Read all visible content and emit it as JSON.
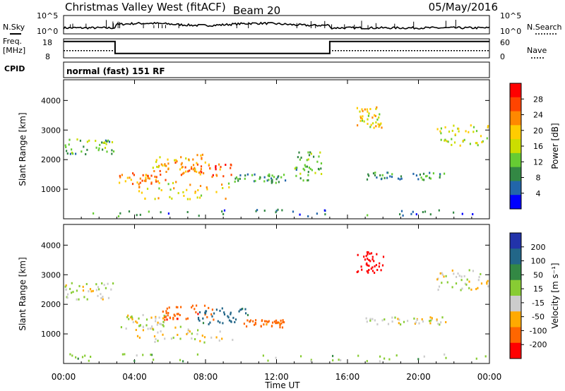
{
  "header": {
    "station": "Christmas Valley West (fitACF)",
    "beam": "Beam 20",
    "date": "05/May/2016"
  },
  "top_panels": {
    "noise": {
      "left_label": "N.Sky",
      "right_label": "N.Search",
      "left_ticks": [
        "10^5",
        "10^0"
      ],
      "right_ticks": [
        "10^5",
        "10^0"
      ]
    },
    "freq": {
      "left_label_1": "Freq.",
      "left_label_2": "[MHz]",
      "right_label": "Nave",
      "left_ticks": [
        "18",
        "8"
      ],
      "right_ticks": [
        "60",
        "0"
      ],
      "freq_series": {
        "x": [
          0,
          2.9,
          2.9,
          15.0,
          15.0,
          24
        ],
        "y": [
          16.6,
          16.6,
          10.3,
          10.3,
          16.6,
          16.6
        ],
        "ylim": [
          8,
          18
        ]
      },
      "nave_series": {
        "x": [
          0,
          2.9,
          2.9,
          15.0,
          15.0,
          24
        ],
        "y": [
          23,
          23,
          14,
          14,
          23,
          23
        ],
        "ylim": [
          0,
          60
        ]
      }
    },
    "cpid": {
      "label": "CPID",
      "value": "normal (fast) 151 RF"
    }
  },
  "chart_data": [
    {
      "type": "heatmap",
      "name": "power",
      "ylabel": "Slant Range [km]",
      "ylim": [
        0,
        4700
      ],
      "yticks": [
        1000,
        2000,
        3000,
        4000
      ],
      "xlim": [
        0,
        24
      ],
      "xticks": [
        "00:00",
        "04:00",
        "08:00",
        "12:00",
        "16:00",
        "20:00",
        "00:00"
      ],
      "colorbar": {
        "label": "Power [dB]",
        "ticks": [
          "28",
          "24",
          "20",
          "16",
          "12",
          "8",
          "4"
        ],
        "colors": [
          "#ff0000",
          "#ff4400",
          "#ff8800",
          "#ffcc00",
          "#ccdd00",
          "#66cc33",
          "#338844",
          "#2266aa",
          "#0000ff"
        ]
      },
      "regions": [
        {
          "x": [
            0.0,
            2.8
          ],
          "y": [
            2200,
            2750
          ],
          "v": 12
        },
        {
          "x": [
            3.0,
            5.8
          ],
          "y": [
            1200,
            1700
          ],
          "v": 22
        },
        {
          "x": [
            5.0,
            8.0
          ],
          "y": [
            1700,
            2200
          ],
          "v": 20
        },
        {
          "x": [
            6.5,
            9.5
          ],
          "y": [
            1450,
            1900
          ],
          "v": 24
        },
        {
          "x": [
            4.0,
            9.5
          ],
          "y": [
            700,
            1300
          ],
          "v": 18
        },
        {
          "x": [
            9.5,
            12.5
          ],
          "y": [
            1250,
            1550
          ],
          "v": 10
        },
        {
          "x": [
            13.0,
            14.5
          ],
          "y": [
            1300,
            2300
          ],
          "v": 12
        },
        {
          "x": [
            16.5,
            18.0
          ],
          "y": [
            3100,
            3800
          ],
          "v": 18
        },
        {
          "x": [
            17.0,
            21.5
          ],
          "y": [
            1350,
            1600
          ],
          "v": 10
        },
        {
          "x": [
            21.0,
            24.0
          ],
          "y": [
            2500,
            3200
          ],
          "v": 16
        },
        {
          "x": [
            0.0,
            24.0
          ],
          "y": [
            100,
            350
          ],
          "v": 8
        }
      ]
    },
    {
      "type": "heatmap",
      "name": "velocity",
      "ylabel": "Slant Range [km]",
      "xlabel": "Time UT",
      "ylim": [
        0,
        4700
      ],
      "yticks": [
        1000,
        2000,
        3000,
        4000
      ],
      "xlim": [
        0,
        24
      ],
      "xticks": [
        "00:00",
        "04:00",
        "08:00",
        "12:00",
        "16:00",
        "20:00",
        "00:00"
      ],
      "colorbar": {
        "label": "Velocity [m s⁻¹]",
        "ticks": [
          "200",
          "100",
          "50",
          "15",
          "-15",
          "-50",
          "-100",
          "-200"
        ],
        "colors": [
          "#2233aa",
          "#226688",
          "#338844",
          "#88cc33",
          "#cccccc",
          "#ffaa00",
          "#ff6600",
          "#ff0000"
        ]
      },
      "regions": [
        {
          "x": [
            0.0,
            2.8
          ],
          "y": [
            2200,
            2750
          ],
          "v": 0
        },
        {
          "x": [
            3.0,
            5.8
          ],
          "y": [
            1200,
            1700
          ],
          "v": 0
        },
        {
          "x": [
            5.5,
            8.5
          ],
          "y": [
            1500,
            2000
          ],
          "v": -60
        },
        {
          "x": [
            7.5,
            10.5
          ],
          "y": [
            1350,
            1900
          ],
          "v": 90
        },
        {
          "x": [
            4.0,
            9.5
          ],
          "y": [
            700,
            1300
          ],
          "v": 0
        },
        {
          "x": [
            10.0,
            12.5
          ],
          "y": [
            1250,
            1500
          ],
          "v": -50
        },
        {
          "x": [
            16.5,
            18.0
          ],
          "y": [
            3100,
            3800
          ],
          "v": -180
        },
        {
          "x": [
            17.0,
            21.5
          ],
          "y": [
            1350,
            1600
          ],
          "v": 0
        },
        {
          "x": [
            21.0,
            24.0
          ],
          "y": [
            2500,
            3200
          ],
          "v": 0
        },
        {
          "x": [
            0.0,
            24.0
          ],
          "y": [
            100,
            350
          ],
          "v": 20
        }
      ]
    }
  ]
}
